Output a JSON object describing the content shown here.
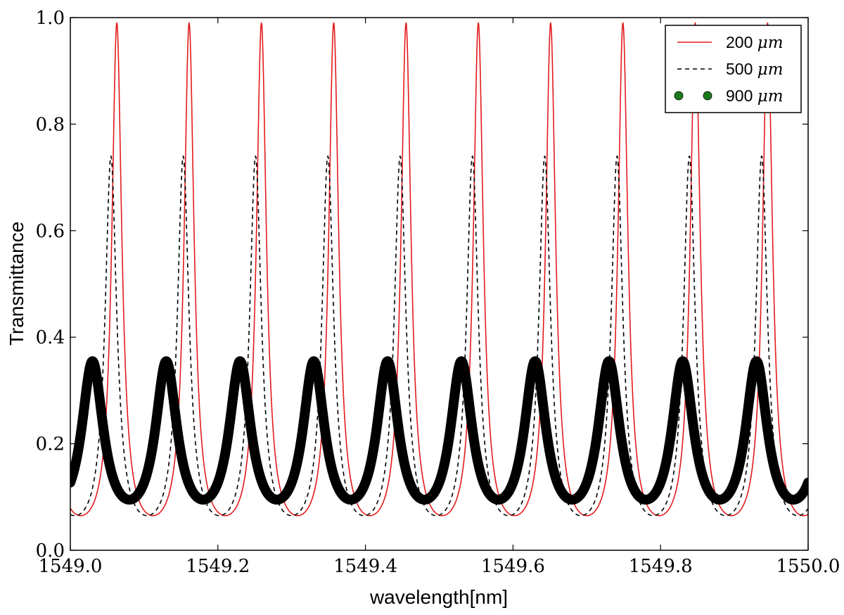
{
  "chart_data": {
    "type": "line",
    "title": "",
    "xlabel": "wavelength[nm]",
    "ylabel": "Transmittance",
    "xlim": [
      1549.0,
      1550.0
    ],
    "ylim": [
      0.0,
      1.0
    ],
    "xticks": [
      "1549.0",
      "1549.2",
      "1549.4",
      "1549.6",
      "1549.8",
      "1550.0"
    ],
    "yticks": [
      "0.0",
      "0.2",
      "0.4",
      "0.6",
      "0.8",
      "1.0"
    ],
    "grid": false,
    "legend_position": "top-right",
    "series": [
      {
        "name": "200",
        "unit": "μm",
        "style": "solid",
        "color": "#e41a1c",
        "peak_wavelengths": [
          1549.063,
          1549.161,
          1549.259,
          1549.357,
          1549.455,
          1549.553,
          1549.651,
          1549.749,
          1549.847,
          1549.945
        ],
        "max": 0.99,
        "min": 0.065
      },
      {
        "name": "500",
        "unit": "μm",
        "style": "dashed",
        "color": "#000000",
        "peak_wavelengths": [
          1549.055,
          1549.153,
          1549.251,
          1549.349,
          1549.447,
          1549.545,
          1549.643,
          1549.741,
          1549.839,
          1549.937
        ],
        "max": 0.74,
        "min": 0.065
      },
      {
        "name": "900",
        "unit": "μm",
        "style": "dots",
        "color": "#000000",
        "legend_marker_color": "#1b7a1b",
        "peak_wavelengths": [
          1549.03,
          1549.13,
          1549.23,
          1549.33,
          1549.43,
          1549.53,
          1549.63,
          1549.73,
          1549.83,
          1549.93
        ],
        "max": 0.355,
        "min": 0.095
      }
    ]
  }
}
